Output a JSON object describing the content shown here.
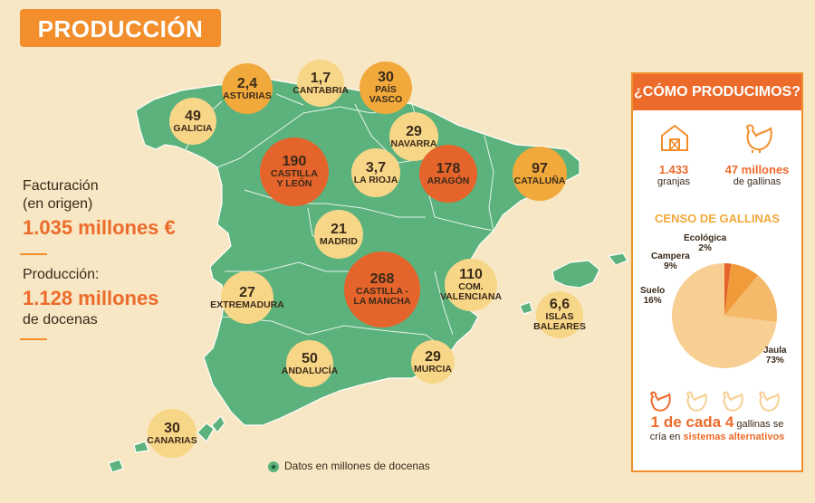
{
  "title": "PRODUCCIÓN",
  "stats": {
    "billing_label": [
      "Facturación",
      "(en origen)"
    ],
    "billing_value": "1.035 millones €",
    "production_label": "Producción:",
    "production_value": "1.128 millones",
    "production_unit": "de docenas"
  },
  "regions": [
    {
      "value": "2,4",
      "name": "ASTURIAS",
      "level": "mid"
    },
    {
      "value": "1,7",
      "name": "CANTABRIA",
      "level": "light"
    },
    {
      "value": "30",
      "name": [
        "PAÍS",
        "VASCO"
      ],
      "level": "mid"
    },
    {
      "value": "49",
      "name": "GALICIA",
      "level": "light"
    },
    {
      "value": "29",
      "name": "NAVARRA",
      "level": "light"
    },
    {
      "value": "190",
      "name": [
        "CASTILLA",
        "Y LEÓN"
      ],
      "level": "dark"
    },
    {
      "value": "3,7",
      "name": "LA RIOJA",
      "level": "light"
    },
    {
      "value": "178",
      "name": "ARAGÓN",
      "level": "dark"
    },
    {
      "value": "97",
      "name": "CATALUÑA",
      "level": "mid"
    },
    {
      "value": "21",
      "name": "MADRID",
      "level": "light"
    },
    {
      "value": "27",
      "name": "EXTREMADURA",
      "level": "light"
    },
    {
      "value": "268",
      "name": [
        "CASTILLA -",
        "LA MANCHA"
      ],
      "level": "dark"
    },
    {
      "value": "110",
      "name": [
        "COM.",
        "VALENCIANA"
      ],
      "level": "light"
    },
    {
      "value": "6,6",
      "name": [
        "ISLAS",
        "BALEARES"
      ],
      "level": "light"
    },
    {
      "value": "50",
      "name": "ANDALUCÍA",
      "level": "light"
    },
    {
      "value": "29",
      "name": "MURCIA",
      "level": "light"
    },
    {
      "value": "30",
      "name": "CANARIAS",
      "level": "light"
    }
  ],
  "legend": "Datos en millones de docenas",
  "panel": {
    "heading": "¿CÓMO PRODUCIMOS?",
    "farms_value": "1.433",
    "farms_label": "granjas",
    "hens_value": "47 millones",
    "hens_label": "de gallinas",
    "census_title": "CENSO DE GALLINAS",
    "census": [
      {
        "name": "Jaula",
        "pct": 73,
        "color": "#f8cf93"
      },
      {
        "name": "Suelo",
        "pct": 16,
        "color": "#f5b96a"
      },
      {
        "name": "Campera",
        "pct": 9,
        "color": "#f19a3a"
      },
      {
        "name": "Ecológica",
        "pct": 2,
        "color": "#e4642c"
      }
    ],
    "census_labels": {
      "jaula": "73%",
      "suelo": "16%",
      "campera": "9%",
      "ecologica": "2%"
    },
    "footer_big": "1 de cada 4",
    "footer_mid": " gallinas se",
    "footer_line2": "cría en ",
    "footer_acc": "sistemas alternativos"
  },
  "colors": {
    "land": "#5cb27c",
    "accent": "#ec6b2b",
    "background": "#f8e7c4"
  },
  "icons": [
    "barn-icon",
    "hen-icon"
  ]
}
